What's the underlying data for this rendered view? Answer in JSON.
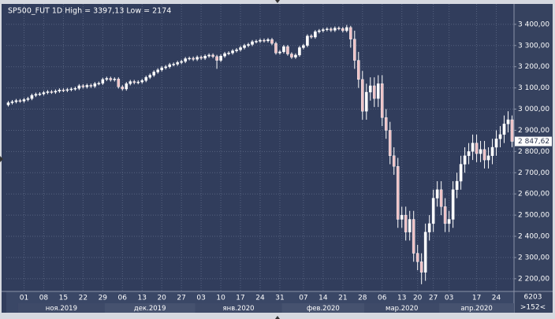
{
  "chart_data": {
    "type": "candlestick",
    "title": "SP500_FUT 1D High = 3397,13 Low = 2174",
    "categories": [
      null,
      null,
      null,
      null,
      "01",
      null,
      null,
      null,
      null,
      "08",
      null,
      null,
      null,
      null,
      "15",
      null,
      null,
      null,
      null,
      "22",
      null,
      null,
      null,
      null,
      "29",
      null,
      null,
      null,
      null,
      "06",
      null,
      null,
      null,
      null,
      "13",
      null,
      null,
      null,
      null,
      "20",
      null,
      null,
      null,
      null,
      "27",
      null,
      null,
      null,
      null,
      "03",
      null,
      null,
      null,
      null,
      "10",
      null,
      null,
      null,
      null,
      "17",
      null,
      null,
      null,
      null,
      "24",
      null,
      null,
      null,
      null,
      "31",
      null,
      null,
      null,
      null,
      null,
      "07",
      null,
      null,
      null,
      null,
      "14",
      null,
      null,
      null,
      null,
      "21",
      null,
      null,
      null,
      null,
      "28",
      null,
      null,
      null,
      null,
      "06",
      null,
      null,
      null,
      null,
      "13",
      null,
      null,
      null,
      "20",
      null,
      null,
      null,
      "27",
      null,
      null,
      null,
      "03",
      null,
      null,
      null,
      null,
      null,
      null,
      "17",
      null,
      null,
      null,
      null,
      "24",
      null,
      null,
      null,
      null
    ],
    "months": [
      null,
      null,
      null,
      "ноя.2019",
      null,
      null,
      null,
      null,
      null,
      null,
      null,
      null,
      null,
      null,
      null,
      null,
      null,
      null,
      null,
      null,
      null,
      null,
      null,
      null,
      null,
      "дек.2019",
      null,
      null,
      null,
      null,
      null,
      null,
      null,
      null,
      null,
      null,
      null,
      null,
      null,
      null,
      null,
      null,
      null,
      null,
      null,
      null,
      null,
      null,
      "янв.2020",
      null,
      null,
      null,
      null,
      null,
      null,
      null,
      null,
      null,
      null,
      null,
      null,
      null,
      null,
      null,
      null,
      null,
      null,
      null,
      null,
      null,
      "фев.2020",
      null,
      null,
      null,
      null,
      null,
      null,
      null,
      null,
      null,
      null,
      null,
      null,
      null,
      null,
      null,
      null,
      null,
      null,
      null,
      null,
      "мар.2020",
      null,
      null,
      null,
      null,
      null,
      null,
      null,
      null,
      null,
      null,
      null,
      null,
      null,
      null,
      null,
      null,
      null,
      null,
      "апр.2020",
      null,
      null,
      null,
      null,
      null,
      null,
      null,
      null,
      null,
      null,
      null,
      null,
      null,
      null,
      null,
      null,
      null,
      null
    ],
    "open": [
      3020,
      3030,
      3035,
      3040,
      3038,
      3045,
      3050,
      3065,
      3070,
      3072,
      3078,
      3082,
      3080,
      3085,
      3090,
      3088,
      3092,
      3095,
      3098,
      3110,
      3105,
      3112,
      3108,
      3120,
      3122,
      3140,
      3145,
      3138,
      3142,
      3105,
      3095,
      3120,
      3130,
      3125,
      3128,
      3135,
      3150,
      3160,
      3175,
      3185,
      3195,
      3200,
      3210,
      3212,
      3220,
      3225,
      3238,
      3240,
      3235,
      3245,
      3240,
      3250,
      3255,
      3248,
      3230,
      3250,
      3262,
      3265,
      3275,
      3280,
      3290,
      3300,
      3305,
      3318,
      3320,
      3325,
      3322,
      3328,
      3310,
      3265,
      3270,
      3295,
      3260,
      3245,
      3255,
      3290,
      3300,
      3345,
      3340,
      3365,
      3370,
      3375,
      3378,
      3372,
      3382,
      3380,
      3370,
      3385,
      3330,
      3230,
      3140,
      2990,
      3080,
      3110,
      3050,
      3120,
      2960,
      2900,
      2780,
      2730,
      2480,
      2500,
      2420,
      2480,
      2320,
      2280,
      2230,
      2420,
      2460,
      2580,
      2620,
      2540,
      2460,
      2480,
      2620,
      2660,
      2740,
      2780,
      2800,
      2840,
      2790,
      2810,
      2760,
      2780,
      2820,
      2860,
      2880,
      2930,
      2950
    ],
    "high": [
      3038,
      3043,
      3048,
      3048,
      3053,
      3058,
      3073,
      3078,
      3080,
      3086,
      3090,
      3090,
      3093,
      3098,
      3098,
      3100,
      3103,
      3106,
      3118,
      3118,
      3120,
      3120,
      3128,
      3130,
      3148,
      3153,
      3153,
      3150,
      3150,
      3113,
      3128,
      3138,
      3138,
      3136,
      3143,
      3158,
      3168,
      3183,
      3193,
      3203,
      3208,
      3218,
      3220,
      3228,
      3233,
      3246,
      3248,
      3248,
      3253,
      3253,
      3258,
      3263,
      3263,
      3256,
      3258,
      3270,
      3273,
      3283,
      3288,
      3298,
      3308,
      3313,
      3326,
      3328,
      3333,
      3333,
      3336,
      3336,
      3318,
      3278,
      3303,
      3303,
      3268,
      3263,
      3298,
      3308,
      3353,
      3353,
      3373,
      3378,
      3383,
      3386,
      3386,
      3390,
      3390,
      3388,
      3397.13,
      3393,
      3370,
      3270,
      3180,
      3120,
      3150,
      3150,
      3160,
      3160,
      3000,
      2940,
      2820,
      2770,
      2540,
      2540,
      2520,
      2520,
      2360,
      2320,
      2460,
      2500,
      2620,
      2660,
      2660,
      2580,
      2520,
      2660,
      2700,
      2780,
      2820,
      2840,
      2880,
      2880,
      2850,
      2850,
      2820,
      2860,
      2900,
      2920,
      2970,
      2990,
      2970
    ],
    "low": [
      3012,
      3022,
      3027,
      3030,
      3030,
      3037,
      3042,
      3057,
      3062,
      3064,
      3070,
      3072,
      3072,
      3077,
      3080,
      3080,
      3084,
      3087,
      3090,
      3097,
      3097,
      3100,
      3100,
      3112,
      3114,
      3132,
      3130,
      3130,
      3097,
      3087,
      3087,
      3112,
      3117,
      3117,
      3120,
      3127,
      3142,
      3152,
      3167,
      3177,
      3187,
      3192,
      3202,
      3204,
      3212,
      3217,
      3230,
      3227,
      3227,
      3232,
      3232,
      3242,
      3240,
      3190,
      3222,
      3242,
      3254,
      3257,
      3267,
      3272,
      3282,
      3292,
      3297,
      3310,
      3312,
      3314,
      3314,
      3302,
      3257,
      3257,
      3262,
      3252,
      3237,
      3237,
      3247,
      3282,
      3292,
      3332,
      3332,
      3357,
      3362,
      3367,
      3364,
      3364,
      3372,
      3362,
      3362,
      3290,
      3190,
      3100,
      2950,
      2950,
      3040,
      3010,
      3010,
      2920,
      2860,
      2740,
      2690,
      2440,
      2440,
      2380,
      2380,
      2280,
      2240,
      2174,
      2190,
      2380,
      2420,
      2540,
      2500,
      2420,
      2420,
      2440,
      2580,
      2620,
      2700,
      2740,
      2760,
      2750,
      2750,
      2720,
      2720,
      2740,
      2780,
      2820,
      2840,
      2890,
      2820
    ],
    "close": [
      3030,
      3035,
      3040,
      3038,
      3045,
      3050,
      3065,
      3070,
      3072,
      3078,
      3082,
      3080,
      3085,
      3090,
      3088,
      3092,
      3095,
      3098,
      3110,
      3105,
      3112,
      3108,
      3120,
      3122,
      3140,
      3145,
      3138,
      3142,
      3105,
      3095,
      3120,
      3130,
      3125,
      3128,
      3135,
      3150,
      3160,
      3175,
      3185,
      3195,
      3200,
      3210,
      3212,
      3220,
      3225,
      3238,
      3240,
      3235,
      3245,
      3240,
      3250,
      3255,
      3248,
      3230,
      3250,
      3262,
      3265,
      3275,
      3280,
      3290,
      3300,
      3305,
      3318,
      3320,
      3325,
      3322,
      3328,
      3310,
      3265,
      3270,
      3295,
      3260,
      3245,
      3255,
      3290,
      3300,
      3345,
      3340,
      3365,
      3370,
      3375,
      3378,
      3372,
      3382,
      3380,
      3370,
      3385,
      3330,
      3230,
      3140,
      2990,
      3080,
      3110,
      3050,
      3120,
      2960,
      2900,
      2780,
      2730,
      2480,
      2500,
      2420,
      2480,
      2320,
      2280,
      2230,
      2420,
      2460,
      2580,
      2620,
      2540,
      2460,
      2480,
      2620,
      2660,
      2740,
      2780,
      2800,
      2840,
      2790,
      2810,
      2760,
      2780,
      2820,
      2860,
      2880,
      2930,
      2950,
      2847.62
    ],
    "up_color": "#ffffff",
    "down_color": "#f0c2c6",
    "ylim": [
      2140,
      3485
    ],
    "yticks": [
      {
        "value": 2200,
        "label": "2 200,00"
      },
      {
        "value": 2300,
        "label": "2 300,00"
      },
      {
        "value": 2400,
        "label": "2 400,00"
      },
      {
        "value": 2500,
        "label": "2 500,00"
      },
      {
        "value": 2600,
        "label": "2 600,00"
      },
      {
        "value": 2700,
        "label": "2 700,00"
      },
      {
        "value": 2800,
        "label": "2 800,00"
      },
      {
        "value": 2900,
        "label": "2 900,00"
      },
      {
        "value": 3000,
        "label": "3 000,00"
      },
      {
        "value": 3100,
        "label": "3 100,00"
      },
      {
        "value": 3200,
        "label": "3 200,00"
      },
      {
        "value": 3300,
        "label": "3 300,00"
      },
      {
        "value": 3400,
        "label": "3 400,00"
      }
    ],
    "grid": true,
    "last_price": {
      "value": 2847.62,
      "label": "2 847,62"
    },
    "corner_labels": [
      "6203",
      ">152<"
    ]
  }
}
